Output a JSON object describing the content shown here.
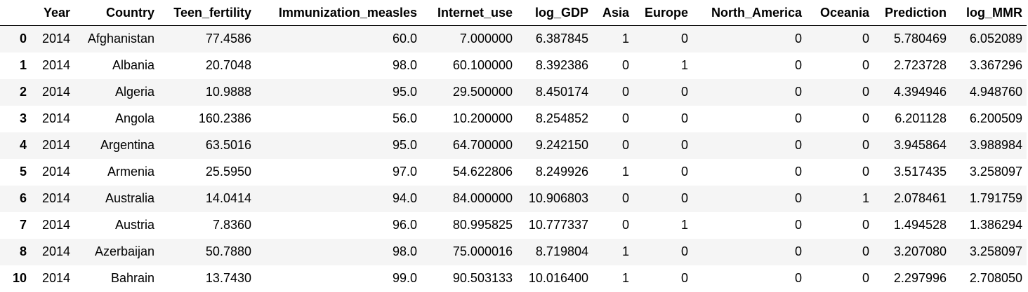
{
  "table": {
    "columns": [
      "",
      "Year",
      "Country",
      "Teen_fertility",
      "Immunization_measles",
      "Internet_use",
      "log_GDP",
      "Asia",
      "Europe",
      "North_America",
      "Oceania",
      "Prediction",
      "log_MMR"
    ],
    "rows": [
      [
        "0",
        "2014",
        "Afghanistan",
        "77.4586",
        "60.0",
        "7.000000",
        "6.387845",
        "1",
        "0",
        "0",
        "0",
        "5.780469",
        "6.052089"
      ],
      [
        "1",
        "2014",
        "Albania",
        "20.7048",
        "98.0",
        "60.100000",
        "8.392386",
        "0",
        "1",
        "0",
        "0",
        "2.723728",
        "3.367296"
      ],
      [
        "2",
        "2014",
        "Algeria",
        "10.9888",
        "95.0",
        "29.500000",
        "8.450174",
        "0",
        "0",
        "0",
        "0",
        "4.394946",
        "4.948760"
      ],
      [
        "3",
        "2014",
        "Angola",
        "160.2386",
        "56.0",
        "10.200000",
        "8.254852",
        "0",
        "0",
        "0",
        "0",
        "6.201128",
        "6.200509"
      ],
      [
        "4",
        "2014",
        "Argentina",
        "63.5016",
        "95.0",
        "64.700000",
        "9.242150",
        "0",
        "0",
        "0",
        "0",
        "3.945864",
        "3.988984"
      ],
      [
        "5",
        "2014",
        "Armenia",
        "25.5950",
        "97.0",
        "54.622806",
        "8.249926",
        "1",
        "0",
        "0",
        "0",
        "3.517435",
        "3.258097"
      ],
      [
        "6",
        "2014",
        "Australia",
        "14.0414",
        "94.0",
        "84.000000",
        "10.906803",
        "0",
        "0",
        "0",
        "1",
        "2.078461",
        "1.791759"
      ],
      [
        "7",
        "2014",
        "Austria",
        "7.8360",
        "96.0",
        "80.995825",
        "10.777337",
        "0",
        "1",
        "0",
        "0",
        "1.494528",
        "1.386294"
      ],
      [
        "8",
        "2014",
        "Azerbaijan",
        "50.7880",
        "98.0",
        "75.000016",
        "8.719804",
        "1",
        "0",
        "0",
        "0",
        "3.207080",
        "3.258097"
      ],
      [
        "10",
        "2014",
        "Bahrain",
        "13.7430",
        "99.0",
        "90.503133",
        "10.016400",
        "1",
        "0",
        "0",
        "0",
        "2.297996",
        "2.708050"
      ]
    ]
  }
}
